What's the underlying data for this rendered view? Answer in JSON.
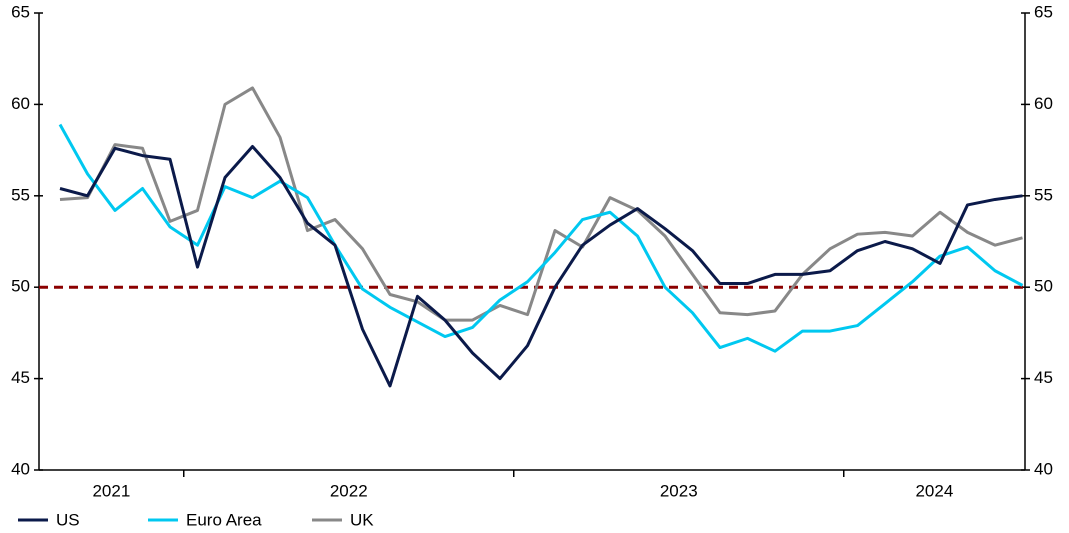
{
  "chart_data": {
    "type": "line",
    "categories": [
      null,
      null,
      null,
      null,
      null,
      null,
      null,
      null,
      null,
      null,
      null,
      null,
      null,
      null,
      null,
      null,
      null,
      null,
      null,
      null,
      null,
      null,
      null,
      null,
      null,
      null,
      null,
      null,
      null,
      null,
      null,
      null,
      null,
      null,
      null,
      null
    ],
    "x_labels": [
      "2021",
      "2022",
      "2023",
      "2024"
    ],
    "series": [
      {
        "name": "US",
        "color": "#0b1a4a",
        "values": [
          55.4,
          55.0,
          57.6,
          57.2,
          57.0,
          51.1,
          56.0,
          57.7,
          56.0,
          53.5,
          52.3,
          47.7,
          44.6,
          49.5,
          48.2,
          46.4,
          45.0,
          46.8,
          50.0,
          52.3,
          53.4,
          54.3,
          53.2,
          52.0,
          50.2,
          50.2,
          50.7,
          50.7,
          50.9,
          52.0,
          52.5,
          52.1,
          51.3,
          54.5,
          54.8,
          55.0
        ]
      },
      {
        "name": "Euro Area",
        "color": "#00c8f0",
        "values": [
          58.9,
          56.2,
          54.2,
          55.4,
          53.3,
          52.3,
          55.5,
          54.9,
          55.8,
          54.9,
          52.3,
          49.9,
          48.9,
          48.1,
          47.3,
          47.8,
          49.3,
          50.3,
          51.9,
          53.7,
          54.1,
          52.8,
          50.0,
          48.6,
          46.7,
          47.2,
          46.5,
          47.6,
          47.6,
          47.9,
          49.1,
          50.3,
          51.7,
          52.2,
          50.9,
          50.1
        ]
      },
      {
        "name": "UK",
        "color": "#888888",
        "values": [
          54.8,
          54.9,
          57.8,
          57.6,
          53.6,
          54.2,
          60.0,
          60.9,
          58.2,
          53.1,
          53.7,
          52.1,
          49.6,
          49.2,
          48.2,
          48.2,
          49.0,
          48.5,
          53.1,
          52.2,
          54.9,
          54.2,
          52.8,
          50.7,
          48.6,
          48.5,
          48.7,
          50.7,
          52.1,
          52.9,
          53.0,
          52.8,
          54.1,
          53.0,
          52.3,
          52.7
        ]
      }
    ],
    "ylim": [
      40,
      65
    ],
    "yticks": [
      40,
      45,
      50,
      55,
      60,
      65
    ],
    "y2lim": [
      40,
      65
    ],
    "y2ticks": [
      40,
      45,
      50,
      55,
      60,
      65
    ],
    "reference_line": {
      "value": 50,
      "color": "#8b0000"
    },
    "legend": "bottom-left"
  }
}
